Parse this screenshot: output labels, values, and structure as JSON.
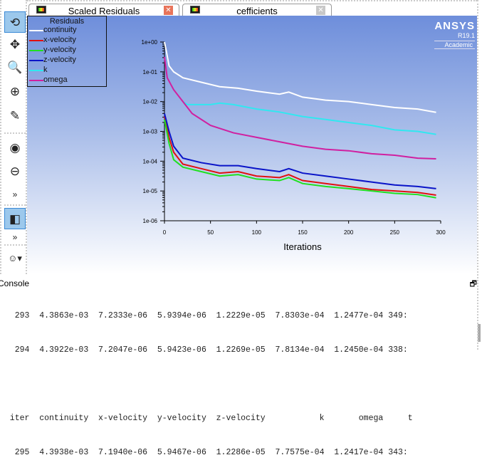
{
  "tabs": [
    {
      "label": "Scaled Residuals",
      "active": true
    },
    {
      "label": "cefficients",
      "active": false
    }
  ],
  "toolbar": [
    "rotate",
    "pan",
    "zoom-in-out",
    "zoom",
    "probe",
    "zoom-to-area",
    "zoom-out",
    "more",
    "isometric-view",
    "more",
    "views"
  ],
  "logo": {
    "brand": "ANSYS",
    "version": "R19.1",
    "edition": "Academic"
  },
  "chart_data": {
    "type": "line",
    "title": "Residuals",
    "xlabel": "Iterations",
    "ylabel": "",
    "yscale": "log",
    "xlim": [
      0,
      300
    ],
    "ylim": [
      1e-06,
      1
    ],
    "xticks": [
      "0",
      "50",
      "100",
      "150",
      "200",
      "250",
      "300"
    ],
    "yticks": [
      "1e+00",
      "1e-01",
      "1e-02",
      "1e-03",
      "1e-04",
      "1e-05",
      "1e-06"
    ],
    "legend_position": "top-left",
    "series": [
      {
        "name": "continuity",
        "color": "#ffffff",
        "x": [
          0,
          2,
          5,
          10,
          20,
          40,
          60,
          80,
          100,
          125,
          135,
          150,
          175,
          200,
          225,
          250,
          275,
          295
        ],
        "log10": [
          0,
          -0.3,
          -0.8,
          -1.0,
          -1.2,
          -1.35,
          -1.5,
          -1.55,
          -1.65,
          -1.75,
          -1.68,
          -1.85,
          -1.95,
          -2.0,
          -2.1,
          -2.2,
          -2.25,
          -2.36
        ]
      },
      {
        "name": "x-velocity",
        "color": "#e01010",
        "x": [
          0,
          5,
          10,
          20,
          40,
          60,
          80,
          100,
          125,
          135,
          150,
          175,
          200,
          225,
          250,
          275,
          295
        ],
        "log10": [
          -2.5,
          -3.2,
          -3.7,
          -4.1,
          -4.25,
          -4.4,
          -4.35,
          -4.5,
          -4.55,
          -4.45,
          -4.65,
          -4.75,
          -4.85,
          -4.95,
          -5.0,
          -5.05,
          -5.14
        ]
      },
      {
        "name": "y-velocity",
        "color": "#20e020",
        "x": [
          0,
          5,
          10,
          20,
          40,
          60,
          80,
          100,
          125,
          135,
          150,
          175,
          200,
          225,
          250,
          275,
          295
        ],
        "log10": [
          -2.6,
          -3.4,
          -3.95,
          -4.2,
          -4.35,
          -4.5,
          -4.45,
          -4.6,
          -4.65,
          -4.55,
          -4.75,
          -4.85,
          -4.92,
          -5.0,
          -5.08,
          -5.12,
          -5.23
        ]
      },
      {
        "name": "z-velocity",
        "color": "#0a14c8",
        "x": [
          0,
          5,
          10,
          20,
          40,
          60,
          80,
          100,
          125,
          135,
          150,
          175,
          200,
          225,
          250,
          275,
          295
        ],
        "log10": [
          -2.4,
          -3.0,
          -3.5,
          -3.9,
          -4.05,
          -4.15,
          -4.15,
          -4.25,
          -4.35,
          -4.25,
          -4.4,
          -4.5,
          -4.6,
          -4.7,
          -4.8,
          -4.85,
          -4.92
        ]
      },
      {
        "name": "k",
        "color": "#30e8f0",
        "x": [
          20,
          25,
          50,
          60,
          75,
          100,
          125,
          150,
          175,
          200,
          225,
          250,
          275,
          295
        ],
        "log10": [
          -2.0,
          -2.1,
          -2.1,
          -2.05,
          -2.1,
          -2.25,
          -2.35,
          -2.5,
          -2.6,
          -2.7,
          -2.8,
          -2.95,
          -3.0,
          -3.1
        ]
      },
      {
        "name": "omega",
        "color": "#d020a0",
        "x": [
          0,
          3,
          10,
          20,
          30,
          50,
          75,
          100,
          125,
          150,
          175,
          200,
          225,
          250,
          275,
          295
        ],
        "log10": [
          -0.5,
          -1.2,
          -1.6,
          -2.0,
          -2.4,
          -2.8,
          -3.05,
          -3.2,
          -3.35,
          -3.5,
          -3.6,
          -3.65,
          -3.75,
          -3.8,
          -3.9,
          -3.92
        ]
      }
    ]
  },
  "console": {
    "title": "Console",
    "rows": [
      "   293  4.3863e-03  7.2333e-06  5.9394e-06  1.2229e-05  7.8303e-04  1.2477e-04 349:",
      "   294  4.3922e-03  7.2047e-06  5.9423e-06  1.2269e-05  7.8134e-04  1.2450e-04 338:",
      "",
      "  iter  continuity  x-velocity  y-velocity  z-velocity           k       omega     t",
      "   295  4.3938e-03  7.1940e-06  5.9467e-06  1.2286e-05  7.7575e-04  1.2417e-04 343:"
    ]
  }
}
